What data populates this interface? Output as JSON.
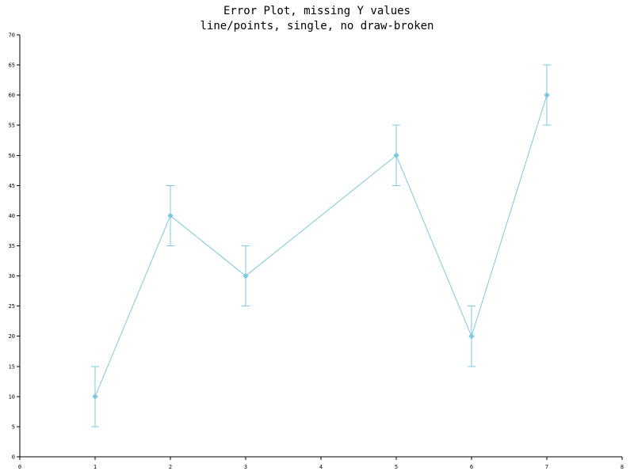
{
  "chart_data": {
    "type": "line",
    "title": "Error Plot, missing Y values",
    "subtitle": "line/points, single, no draw-broken",
    "xlabel": "",
    "ylabel": "",
    "xlim": [
      0,
      8
    ],
    "ylim": [
      0,
      70
    ],
    "x_ticks": [
      0,
      1,
      2,
      3,
      4,
      5,
      6,
      7,
      8
    ],
    "y_ticks": [
      0,
      5,
      10,
      15,
      20,
      25,
      30,
      35,
      40,
      45,
      50,
      55,
      60,
      65,
      70
    ],
    "grid": false,
    "legend": "none",
    "series": [
      {
        "color": "#7ec8df",
        "marker": "diamond",
        "points": [
          {
            "x": 1,
            "y": 10,
            "low": 5,
            "high": 15
          },
          {
            "x": 2,
            "y": 40,
            "low": 35,
            "high": 45
          },
          {
            "x": 3,
            "y": 30,
            "low": 25,
            "high": 35
          },
          {
            "x": 4,
            "y": null,
            "low": null,
            "high": null
          },
          {
            "x": 5,
            "y": 50,
            "low": 45,
            "high": 55
          },
          {
            "x": 6,
            "y": 20,
            "low": 15,
            "high": 25
          },
          {
            "x": 7,
            "y": 60,
            "low": 55,
            "high": 65
          }
        ]
      }
    ]
  }
}
